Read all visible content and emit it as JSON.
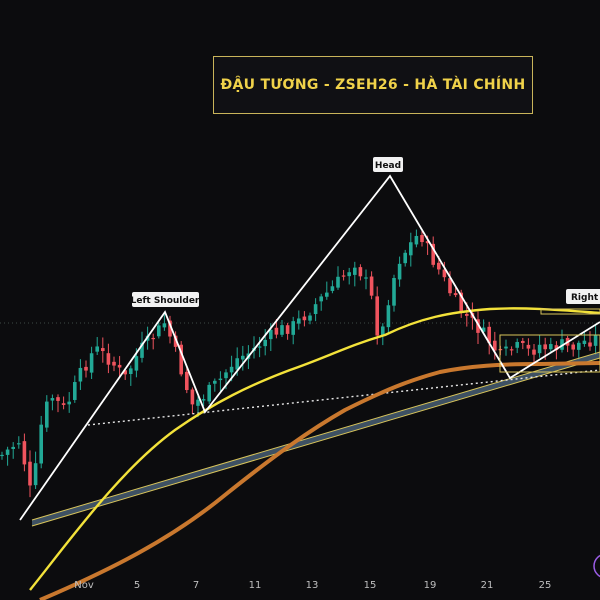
{
  "title": "ĐẬU TƯƠNG - ZSEH26 - HÀ TÀI CHÍNH",
  "chart_data": {
    "type": "candlestick",
    "x_tick_labels": [
      "Nov",
      "5",
      "7",
      "11",
      "13",
      "15",
      "19",
      "21",
      "25"
    ],
    "pattern_labels": {
      "left_shoulder": "Left Shoulder",
      "head": "Head",
      "right_shoulder": "Right S"
    },
    "colors": {
      "up": "#22a996",
      "down": "#f0545e",
      "ma_fast": "#f3e23a",
      "ma_slow": "#c9782e",
      "pattern_lines": "#ffffff",
      "title_border": "#c9b45a",
      "title_text": "#f0d24a"
    }
  }
}
